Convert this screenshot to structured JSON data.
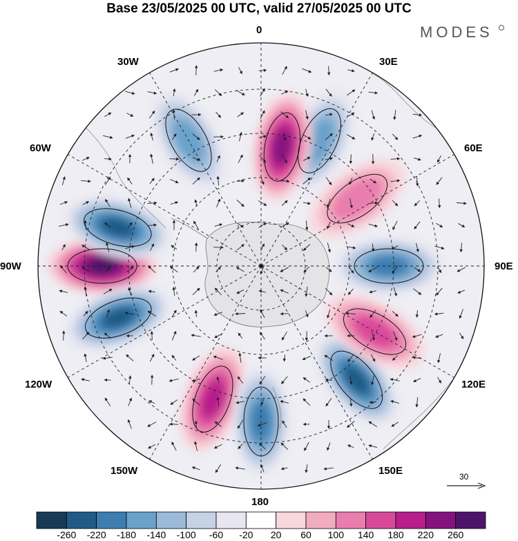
{
  "header": {
    "title": "Base 23/05/2025 00 UTC, valid 27/05/2025 00 UTC",
    "brand": "MODES"
  },
  "map": {
    "projection": "south-polar-stereographic",
    "longitude_labels": [
      "0",
      "30E",
      "60E",
      "90E",
      "120E",
      "150E",
      "180",
      "150W",
      "120W",
      "90W",
      "60W",
      "30W"
    ],
    "graticule": "dashed",
    "field": "shaded anomaly with wind vectors",
    "anomaly_centers": [
      {
        "kind": "positive",
        "longitude": "90W",
        "strength": 260
      },
      {
        "kind": "negative",
        "longitude": "75W",
        "strength": -240
      },
      {
        "kind": "negative",
        "longitude": "110W",
        "strength": -240
      },
      {
        "kind": "positive",
        "longitude": "160W",
        "strength": 200
      },
      {
        "kind": "negative",
        "longitude": "180",
        "strength": -180
      },
      {
        "kind": "negative",
        "longitude": "140E",
        "strength": -220
      },
      {
        "kind": "positive",
        "longitude": "120E",
        "strength": 160
      },
      {
        "kind": "negative",
        "longitude": "90E",
        "strength": -180
      },
      {
        "kind": "positive",
        "longitude": "55E",
        "strength": 120
      },
      {
        "kind": "negative",
        "longitude": "25E",
        "strength": -140
      },
      {
        "kind": "positive",
        "longitude": "10E",
        "strength": 220
      },
      {
        "kind": "negative",
        "longitude": "30W",
        "strength": -140
      }
    ]
  },
  "reference_vector": {
    "label": "30"
  },
  "colorbar": {
    "labels": [
      "-260",
      "-220",
      "-180",
      "-140",
      "-100",
      "-60",
      "-20",
      "20",
      "60",
      "100",
      "140",
      "180",
      "220",
      "260"
    ],
    "colors": [
      "#173a55",
      "#1f5b86",
      "#3e7db1",
      "#6aa2ca",
      "#9bbad9",
      "#c6d2e6",
      "#e8e7f1",
      "#ffffff",
      "#f8d7dd",
      "#f2acc1",
      "#e97dad",
      "#d9499a",
      "#b81f8a",
      "#85137f",
      "#4e1469"
    ]
  }
}
